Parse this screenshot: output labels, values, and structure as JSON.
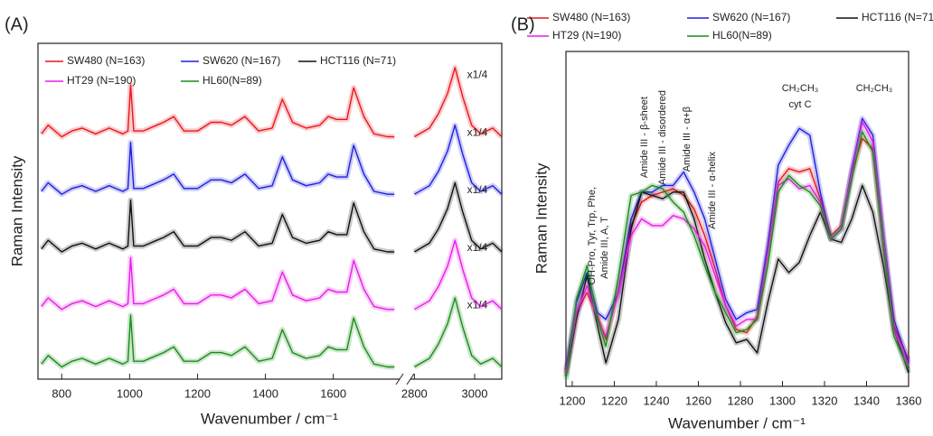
{
  "chart_data": [
    {
      "type": "line",
      "panel_label": "(A)",
      "x_label": "Wavenumber / cm⁻¹",
      "y_label": "Raman Intensity",
      "x": [
        740,
        760,
        780,
        800,
        830,
        860,
        900,
        940,
        980,
        995,
        1003,
        1012,
        1040,
        1080,
        1100,
        1130,
        1160,
        1200,
        1240,
        1270,
        1300,
        1340,
        1380,
        1420,
        1450,
        1480,
        1520,
        1560,
        1585,
        1610,
        1640,
        1660,
        1690,
        1720,
        1760,
        1780
      ],
      "xlim": [
        730,
        1790
      ],
      "xticks": [
        800,
        1000,
        1200,
        1400,
        1600
      ],
      "ylim": [
        0,
        10.5
      ],
      "series": [
        {
          "name": "SW480 (N=163)",
          "color": "#e8171d",
          "values": [
            7.67,
            7.94,
            7.76,
            7.58,
            7.76,
            7.85,
            7.67,
            7.85,
            7.67,
            7.76,
            9.2,
            7.76,
            7.76,
            7.94,
            8.03,
            8.21,
            7.76,
            7.76,
            8.03,
            8.03,
            7.94,
            8.21,
            7.76,
            7.85,
            8.75,
            8.03,
            7.85,
            7.94,
            8.21,
            8.12,
            8.12,
            9.11,
            8.21,
            7.67,
            7.58,
            7.58
          ]
        },
        {
          "name": "SW620 (N=167)",
          "color": "#1f1fe0",
          "values": [
            5.87,
            6.14,
            5.96,
            5.78,
            5.96,
            6.05,
            5.87,
            6.05,
            5.87,
            5.96,
            7.4,
            5.96,
            5.96,
            6.14,
            6.23,
            6.41,
            5.96,
            5.96,
            6.23,
            6.23,
            6.14,
            6.41,
            5.96,
            6.05,
            6.95,
            6.23,
            6.05,
            6.14,
            6.41,
            6.32,
            6.32,
            7.31,
            6.41,
            5.87,
            5.78,
            5.78
          ]
        },
        {
          "name": "HCT116 (N=71)",
          "color": "#111111",
          "values": [
            4.07,
            4.34,
            4.16,
            3.98,
            4.16,
            4.25,
            4.07,
            4.25,
            4.07,
            4.16,
            5.6,
            4.16,
            4.16,
            4.34,
            4.43,
            4.61,
            4.16,
            4.16,
            4.43,
            4.43,
            4.34,
            4.61,
            4.16,
            4.25,
            5.15,
            4.43,
            4.25,
            4.34,
            4.61,
            4.52,
            4.52,
            5.51,
            4.61,
            4.07,
            3.98,
            3.98
          ]
        },
        {
          "name": "HT29 (N=190)",
          "color": "#e61ee6",
          "values": [
            2.27,
            2.54,
            2.36,
            2.18,
            2.36,
            2.45,
            2.27,
            2.45,
            2.27,
            2.36,
            3.8,
            2.36,
            2.36,
            2.54,
            2.63,
            2.81,
            2.36,
            2.36,
            2.63,
            2.63,
            2.54,
            2.81,
            2.36,
            2.45,
            3.35,
            2.63,
            2.45,
            2.54,
            2.81,
            2.72,
            2.72,
            3.71,
            2.81,
            2.27,
            2.18,
            2.18
          ]
        },
        {
          "name": "HL60(N=89)",
          "color": "#1a8c1a",
          "values": [
            0.47,
            0.74,
            0.56,
            0.38,
            0.56,
            0.65,
            0.47,
            0.65,
            0.47,
            0.56,
            2.0,
            0.56,
            0.56,
            0.74,
            0.83,
            1.01,
            0.56,
            0.56,
            0.83,
            0.83,
            0.74,
            1.01,
            0.56,
            0.65,
            1.55,
            0.83,
            0.65,
            0.74,
            1.01,
            0.92,
            0.92,
            1.91,
            1.01,
            0.47,
            0.38,
            0.38
          ]
        }
      ]
    },
    {
      "type": "line",
      "x": [
        2800,
        2850,
        2880,
        2910,
        2935,
        2960,
        2990,
        3020,
        3060,
        3090
      ],
      "xlim": [
        2790,
        3090
      ],
      "xticks": [
        2800,
        3000
      ],
      "ylim": [
        0,
        10.5
      ],
      "annotations": [
        "x1/4",
        "x1/4",
        "x1/4",
        "x1/4",
        "x1/4"
      ],
      "series": [
        {
          "color": "#e8171d",
          "values": [
            7.58,
            7.85,
            8.3,
            8.93,
            9.74,
            8.84,
            7.94,
            7.67,
            7.85,
            7.58
          ]
        },
        {
          "color": "#1f1fe0",
          "values": [
            5.78,
            6.05,
            6.5,
            7.13,
            7.94,
            7.04,
            6.14,
            5.87,
            6.05,
            5.78
          ]
        },
        {
          "color": "#111111",
          "values": [
            3.98,
            4.25,
            4.7,
            5.33,
            6.14,
            5.24,
            4.34,
            4.07,
            4.25,
            3.98
          ]
        },
        {
          "color": "#e61ee6",
          "values": [
            2.18,
            2.45,
            2.9,
            3.53,
            4.34,
            3.44,
            2.54,
            2.27,
            2.45,
            2.18
          ]
        },
        {
          "color": "#1a8c1a",
          "values": [
            0.38,
            0.65,
            1.1,
            1.73,
            2.54,
            1.64,
            0.74,
            0.47,
            0.65,
            0.38
          ]
        }
      ]
    },
    {
      "type": "line",
      "panel_label": "(B)",
      "x_label": "Wavenumber / cm⁻¹",
      "y_label": "Raman Intensity",
      "x": [
        1197,
        1202,
        1207,
        1212,
        1216,
        1222,
        1228,
        1233,
        1238,
        1243,
        1248,
        1253,
        1258,
        1263,
        1268,
        1273,
        1278,
        1283,
        1288,
        1293,
        1298,
        1303,
        1308,
        1313,
        1318,
        1323,
        1328,
        1333,
        1338,
        1343,
        1348,
        1353,
        1360
      ],
      "xlim": [
        1197,
        1360
      ],
      "xticks": [
        1200,
        1220,
        1240,
        1260,
        1280,
        1300,
        1320,
        1340,
        1360
      ],
      "ylim": [
        0,
        1
      ],
      "annotations": [
        "OH-Pro, Tyr, Trp, Phe,",
        "Amide III, A, T",
        "Amide III - β-sheet",
        "Amide III - disordered",
        "Amide III - α+β",
        "Amide III - α-helix",
        "CH₂CH₃",
        "cyt C",
        "CH₂CH₃"
      ],
      "series": [
        {
          "name": "SW480 (N=163)",
          "color": "#e8171d",
          "values": [
            0.04,
            0.22,
            0.28,
            0.21,
            0.14,
            0.29,
            0.48,
            0.55,
            0.57,
            0.58,
            0.59,
            0.57,
            0.53,
            0.45,
            0.35,
            0.24,
            0.17,
            0.16,
            0.21,
            0.4,
            0.61,
            0.65,
            0.64,
            0.65,
            0.56,
            0.45,
            0.48,
            0.64,
            0.74,
            0.71,
            0.43,
            0.18,
            0.08
          ]
        },
        {
          "name": "SW620 (N=167)",
          "color": "#1f1fe0",
          "values": [
            0.05,
            0.25,
            0.34,
            0.22,
            0.2,
            0.28,
            0.5,
            0.58,
            0.58,
            0.6,
            0.6,
            0.64,
            0.58,
            0.5,
            0.38,
            0.26,
            0.2,
            0.22,
            0.23,
            0.42,
            0.66,
            0.72,
            0.77,
            0.75,
            0.58,
            0.44,
            0.47,
            0.65,
            0.8,
            0.75,
            0.45,
            0.2,
            0.07
          ]
        },
        {
          "name": "HCT116 (N=71)",
          "color": "#111111",
          "values": [
            0.03,
            0.2,
            0.33,
            0.18,
            0.07,
            0.2,
            0.47,
            0.58,
            0.57,
            0.56,
            0.58,
            0.58,
            0.5,
            0.38,
            0.28,
            0.19,
            0.13,
            0.14,
            0.1,
            0.25,
            0.38,
            0.34,
            0.37,
            0.45,
            0.52,
            0.44,
            0.43,
            0.5,
            0.6,
            0.52,
            0.36,
            0.17,
            0.04
          ]
        },
        {
          "name": "HT29 (N=190)",
          "color": "#e61ee6",
          "values": [
            0.04,
            0.22,
            0.3,
            0.2,
            0.15,
            0.28,
            0.45,
            0.5,
            0.48,
            0.48,
            0.51,
            0.5,
            0.47,
            0.42,
            0.33,
            0.24,
            0.18,
            0.2,
            0.2,
            0.4,
            0.6,
            0.62,
            0.59,
            0.6,
            0.55,
            0.44,
            0.47,
            0.64,
            0.79,
            0.73,
            0.44,
            0.17,
            0.06
          ]
        },
        {
          "name": "HL60(N=89)",
          "color": "#1a8c1a",
          "values": [
            0.02,
            0.26,
            0.36,
            0.2,
            0.12,
            0.33,
            0.57,
            0.58,
            0.6,
            0.59,
            0.55,
            0.52,
            0.45,
            0.36,
            0.28,
            0.22,
            0.16,
            0.17,
            0.2,
            0.36,
            0.58,
            0.63,
            0.6,
            0.58,
            0.54,
            0.44,
            0.47,
            0.62,
            0.76,
            0.7,
            0.42,
            0.15,
            0.05
          ]
        }
      ]
    }
  ]
}
